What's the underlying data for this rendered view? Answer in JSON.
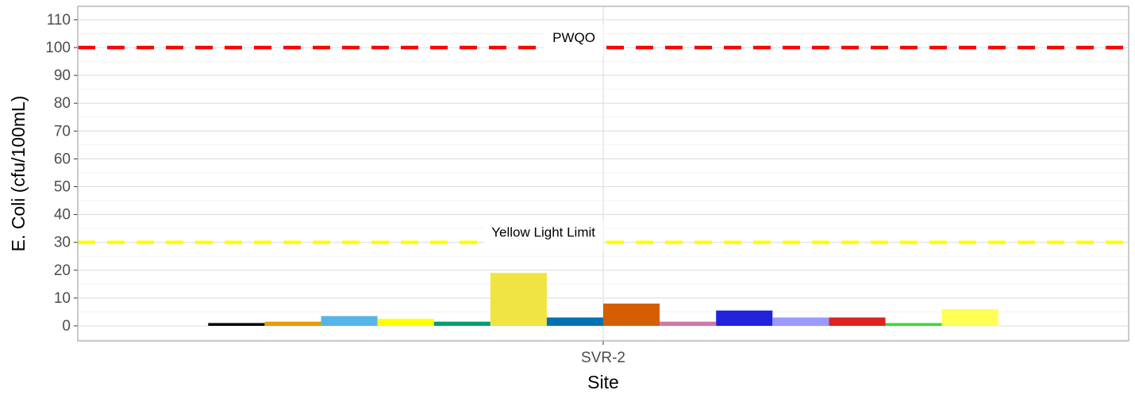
{
  "chart_data": {
    "type": "bar",
    "categories": [
      "SVR-2"
    ],
    "xlabel": "Site",
    "ylabel": "E. Coli (cfu/100mL)",
    "ylim": [
      -5,
      115
    ],
    "yticks": [
      0,
      10,
      20,
      30,
      40,
      50,
      60,
      70,
      80,
      90,
      100,
      110
    ],
    "grid": true,
    "legend": "none",
    "series": [
      {
        "values": [
          1
        ],
        "color": "#000000"
      },
      {
        "values": [
          1.5
        ],
        "color": "#E69F00"
      },
      {
        "values": [
          3.5
        ],
        "color": "#56B4E9"
      },
      {
        "values": [
          2.5
        ],
        "color": "#FFFF00"
      },
      {
        "values": [
          1.5
        ],
        "color": "#009E73"
      },
      {
        "values": [
          19
        ],
        "color": "#F0E442"
      },
      {
        "values": [
          3
        ],
        "color": "#0072B2"
      },
      {
        "values": [
          8
        ],
        "color": "#D55E00"
      },
      {
        "values": [
          1.5
        ],
        "color": "#CC79A7"
      },
      {
        "values": [
          5.5
        ],
        "color": "#2222DD"
      },
      {
        "values": [
          3
        ],
        "color": "#9999FF"
      },
      {
        "values": [
          3
        ],
        "color": "#DD2222"
      },
      {
        "values": [
          1
        ],
        "color": "#33DD33"
      },
      {
        "values": [
          6
        ],
        "color": "#FFFF55"
      }
    ],
    "reference_lines": [
      {
        "label": "PWQO",
        "value": 100,
        "color": "#FF0000"
      },
      {
        "label": "Yellow Light Limit",
        "value": 30,
        "color": "#FFFF00"
      }
    ]
  }
}
